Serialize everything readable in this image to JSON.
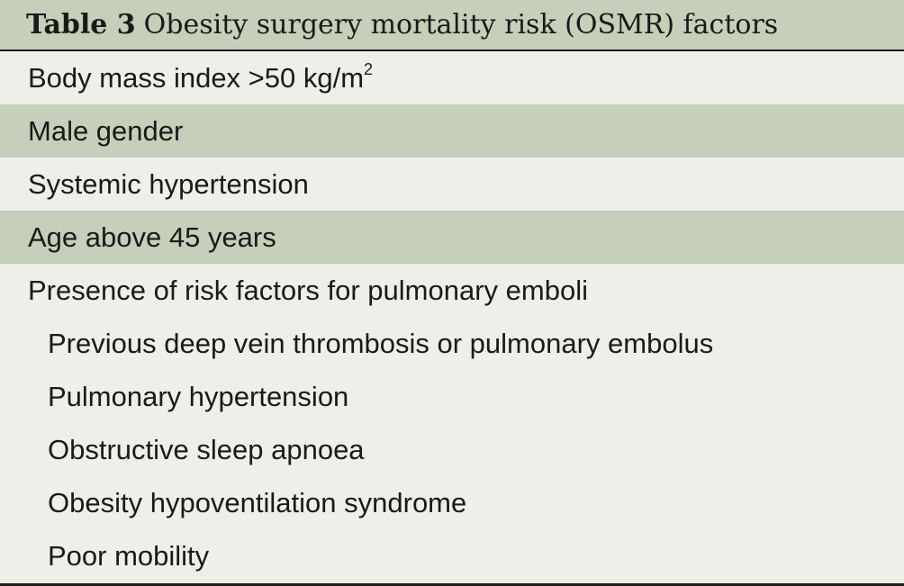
{
  "table": {
    "caption_label": "Table 3",
    "caption_title": "Obesity surgery mortality risk (OSMR) factors",
    "rows": [
      {
        "text": "Body mass index >50 kg/m",
        "superscript": "2"
      },
      {
        "text": "Male gender"
      },
      {
        "text": "Systemic hypertension"
      },
      {
        "text": "Age above 45 years"
      },
      {
        "text": "Presence of risk factors for pulmonary emboli"
      },
      {
        "text": "Previous deep vein thrombosis or pulmonary embolus"
      },
      {
        "text": "Pulmonary hypertension"
      },
      {
        "text": "Obstructive sleep apnoea"
      },
      {
        "text": "Obesity hypoventilation syndrome"
      },
      {
        "text": "Poor mobility"
      }
    ]
  },
  "colors": {
    "header_shade": "#c6cfb9",
    "row_background": "#efefe9",
    "rule": "#1f1f1f"
  }
}
